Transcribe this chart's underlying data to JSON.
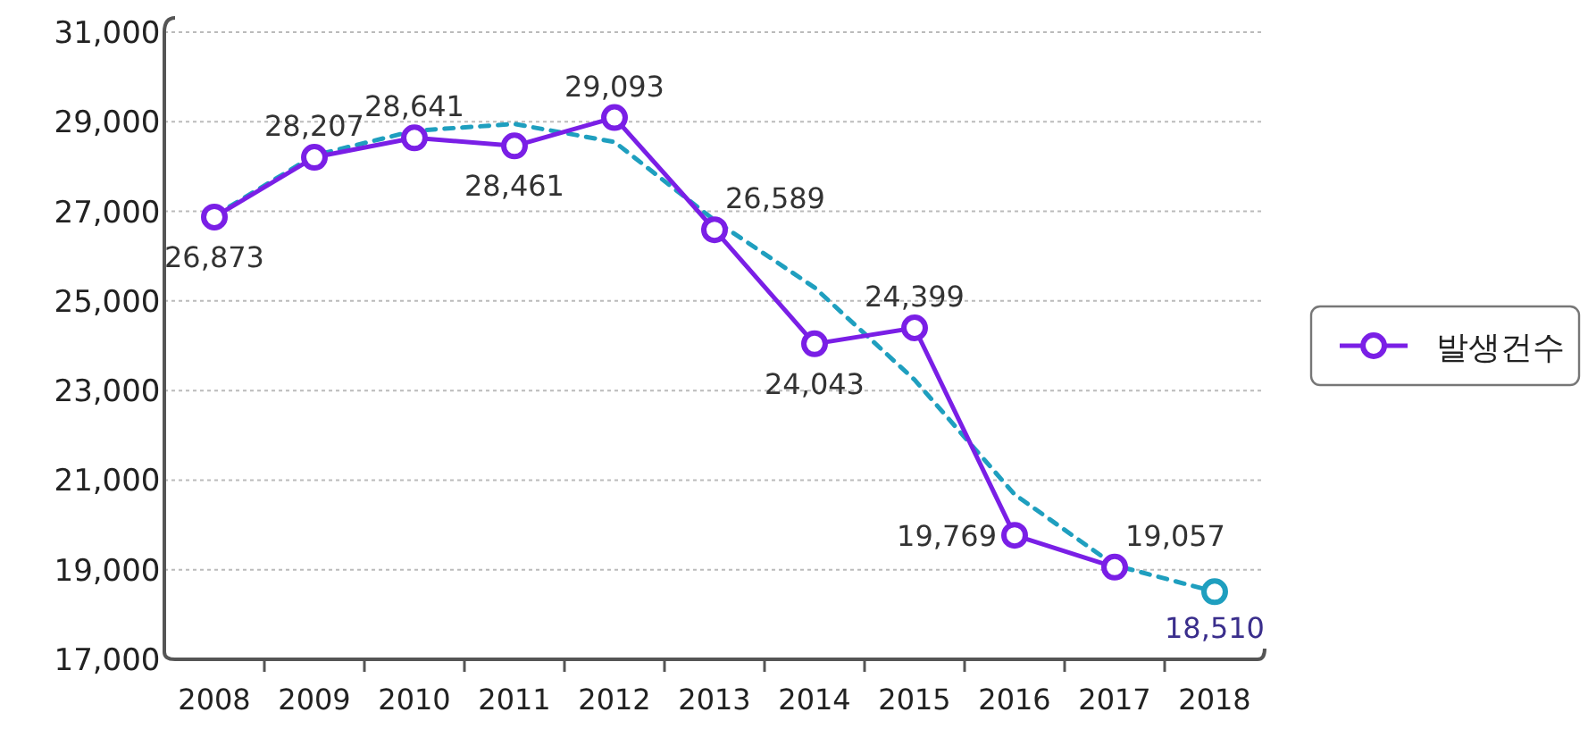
{
  "chart_data": {
    "type": "line",
    "categories": [
      "2008",
      "2009",
      "2010",
      "2011",
      "2012",
      "2013",
      "2014",
      "2015",
      "2016",
      "2017",
      "2018"
    ],
    "series": [
      {
        "name": "발생건수",
        "color": "#7a1fe6",
        "marker": "circle",
        "line_style": "solid",
        "values": [
          26873,
          28207,
          28641,
          28461,
          29093,
          26589,
          24043,
          24399,
          19769,
          19057,
          null
        ],
        "value_labels": [
          "26,873",
          "28,207",
          "28,641",
          "28,461",
          "29,093",
          "26,589",
          "24,043",
          "24,399",
          "19,769",
          "19,057",
          null
        ]
      },
      {
        "color": "#1f9fbf",
        "marker": "none",
        "line_style": "dashed",
        "values": [
          26900,
          28250,
          28800,
          28950,
          28550,
          26800,
          25300,
          23240,
          20680,
          19100,
          18510
        ]
      },
      {
        "type": "scatter",
        "color": "#1f9fbf",
        "marker": "circle",
        "values": [
          null,
          null,
          null,
          null,
          null,
          null,
          null,
          null,
          null,
          null,
          18510
        ],
        "value_labels": [
          null,
          null,
          null,
          null,
          null,
          null,
          null,
          null,
          null,
          null,
          "18,510"
        ]
      }
    ],
    "ylim": [
      17000,
      31000
    ],
    "yticks": [
      {
        "value": 17000,
        "label": "17,000"
      },
      {
        "value": 19000,
        "label": "19,000"
      },
      {
        "value": 21000,
        "label": "21,000"
      },
      {
        "value": 23000,
        "label": "23,000"
      },
      {
        "value": 25000,
        "label": "25,000"
      },
      {
        "value": 27000,
        "label": "27,000"
      },
      {
        "value": 29000,
        "label": "29,000"
      },
      {
        "value": 31000,
        "label": "31,000"
      }
    ],
    "grid": "y",
    "legend": "right"
  }
}
